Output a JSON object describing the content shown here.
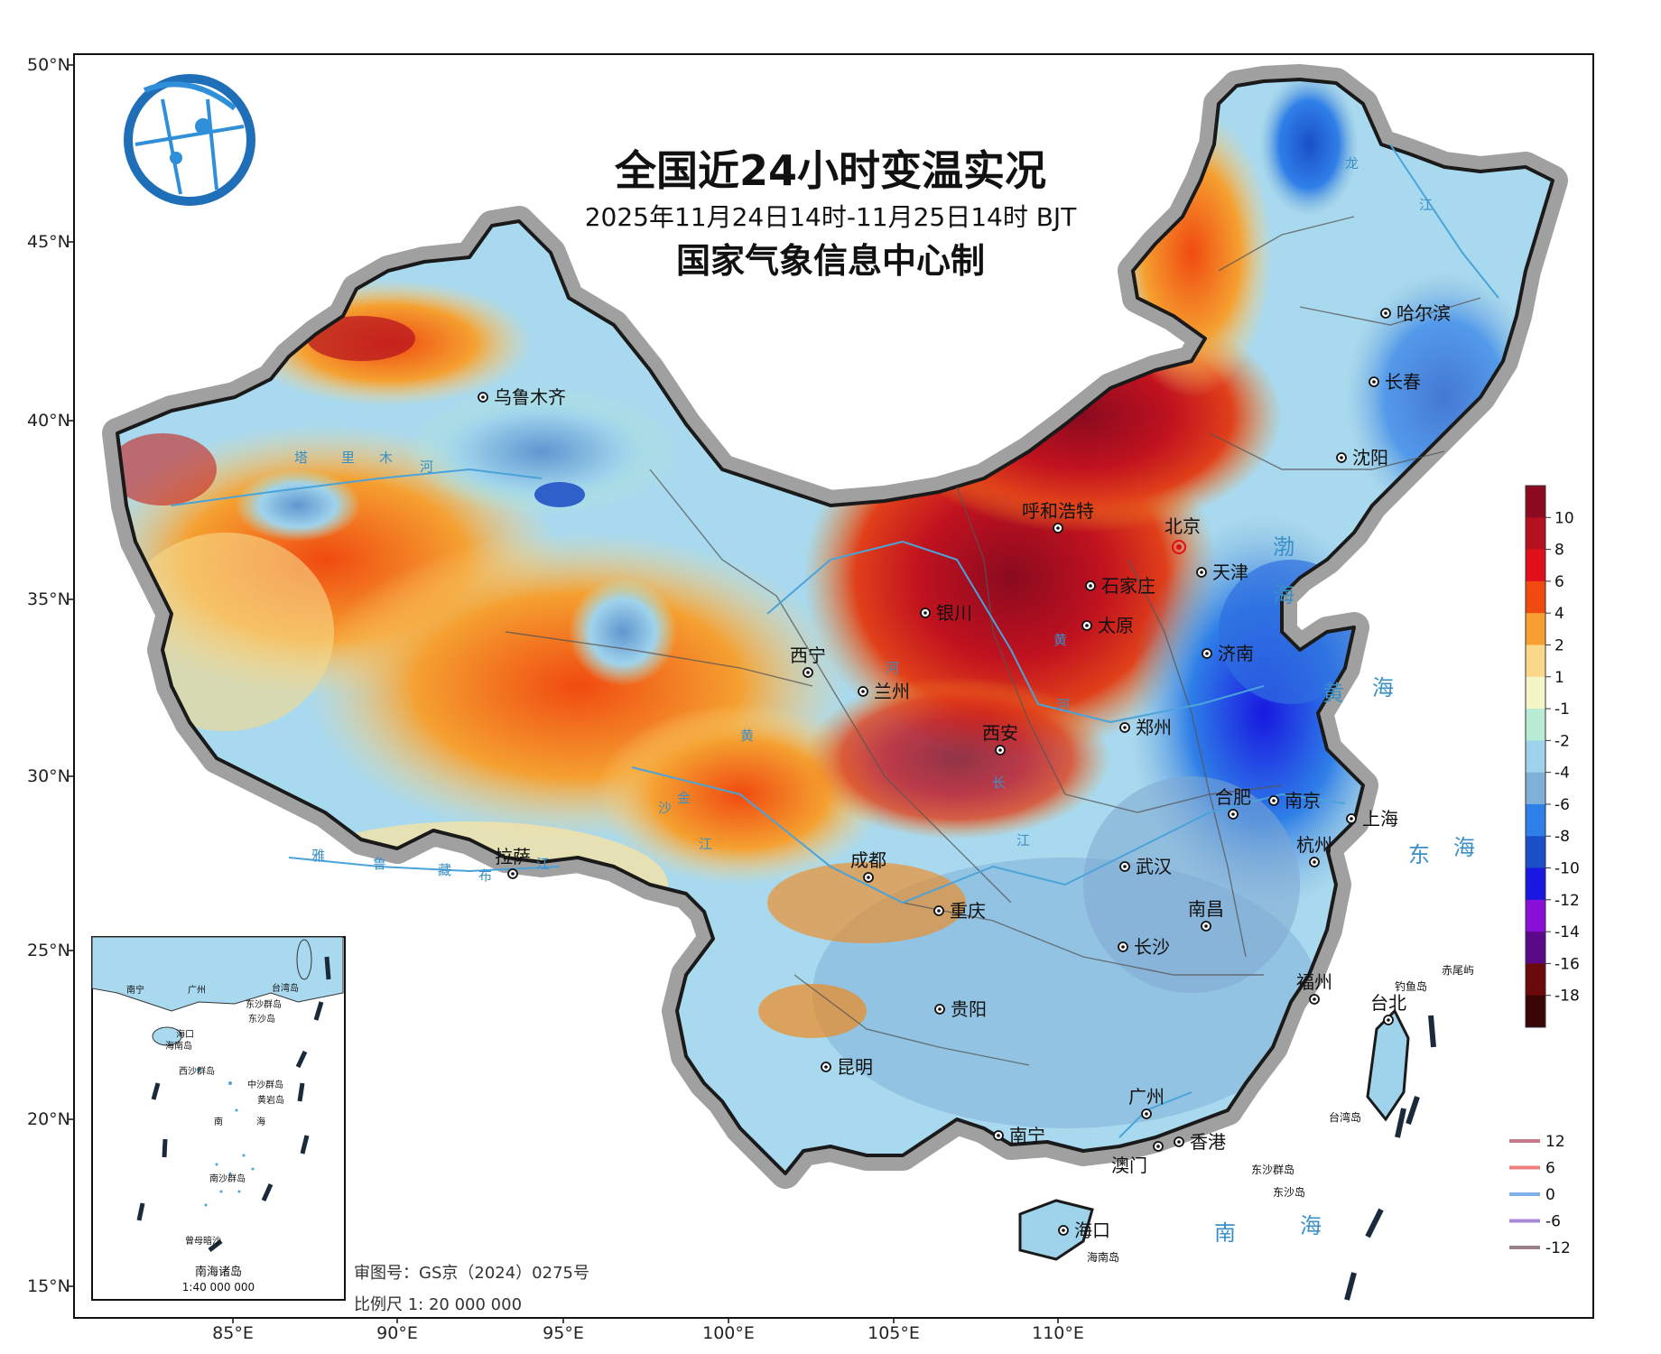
{
  "title": "全国近24小时变温实况",
  "subtitle": "2025年11月24日14时-11月25日14时 BJT",
  "organization": "国家气象信息中心制",
  "latitude_labels": [
    "50°N",
    "45°N",
    "40°N",
    "35°N",
    "30°N",
    "25°N",
    "20°N",
    "15°N"
  ],
  "longitude_labels": [
    "85°E",
    "90°E",
    "95°E",
    "100°E",
    "105°E",
    "110°E"
  ],
  "colorbar": {
    "labels": [
      "10",
      "8",
      "6",
      "4",
      "2",
      "1",
      "-1",
      "-2",
      "-4",
      "-6",
      "-8",
      "-10",
      "-12",
      "-14",
      "-16",
      "-18"
    ],
    "colors": [
      "#8b0a1f",
      "#b5101f",
      "#e0101a",
      "#f04a10",
      "#f5a030",
      "#fbd889",
      "#f4f6c8",
      "#b8ecd4",
      "#9fd3ec",
      "#7fb0d8",
      "#2f7fe8",
      "#1a4fc8",
      "#1818e0",
      "#8a10d8",
      "#5a0a88",
      "#6a0a0a",
      "#3a0505"
    ]
  },
  "contour_legend": {
    "labels": [
      "12",
      "6",
      "0",
      "-6",
      "-12"
    ],
    "colors": [
      "#c87a8a",
      "#ee7f7f",
      "#7fb0e6",
      "#a889d8",
      "#9a8088"
    ]
  },
  "cities": [
    {
      "name": "乌鲁木齐"
    },
    {
      "name": "哈尔滨"
    },
    {
      "name": "长春"
    },
    {
      "name": "沈阳"
    },
    {
      "name": "呼和浩特"
    },
    {
      "name": "北京"
    },
    {
      "name": "天津"
    },
    {
      "name": "石家庄"
    },
    {
      "name": "银川"
    },
    {
      "name": "太原"
    },
    {
      "name": "济南"
    },
    {
      "name": "西宁"
    },
    {
      "name": "兰州"
    },
    {
      "name": "西安"
    },
    {
      "name": "郑州"
    },
    {
      "name": "合肥"
    },
    {
      "name": "南京"
    },
    {
      "name": "上海"
    },
    {
      "name": "拉萨"
    },
    {
      "name": "成都"
    },
    {
      "name": "武汉"
    },
    {
      "name": "杭州"
    },
    {
      "name": "重庆"
    },
    {
      "name": "南昌"
    },
    {
      "name": "长沙"
    },
    {
      "name": "福州"
    },
    {
      "name": "贵阳"
    },
    {
      "name": "昆明"
    },
    {
      "name": "台北"
    },
    {
      "name": "广州"
    },
    {
      "name": "南宁"
    },
    {
      "name": "香港"
    },
    {
      "name": "澳门"
    },
    {
      "name": "海口"
    }
  ],
  "seas": [
    "渤",
    "海",
    "黄",
    "海",
    "东",
    "海",
    "南",
    "海"
  ],
  "rivers": [
    "龙",
    "江",
    "塔",
    "里",
    "木",
    "河",
    "黄",
    "河",
    "河",
    "黄",
    "金",
    "沙",
    "江",
    "雅",
    "鲁",
    "藏",
    "布",
    "江",
    "长",
    "江"
  ],
  "islands": [
    "钓鱼岛",
    "赤尾屿",
    "台湾岛",
    "东沙群岛",
    "东沙岛",
    "海南岛"
  ],
  "inset": {
    "caption": "南海诸岛",
    "scale": "1:40 000 000",
    "labels": [
      "南宁",
      "广州",
      "台湾岛",
      "东沙群岛",
      "东沙岛",
      "海口",
      "海南岛",
      "西沙群岛",
      "中沙群岛",
      "黄岩岛",
      "南",
      "海",
      "南沙群岛",
      "曾母暗沙"
    ]
  },
  "map_review_number": "审图号：GS京（2024）0275号",
  "scale_text": "比例尺 1: 20 000 000"
}
